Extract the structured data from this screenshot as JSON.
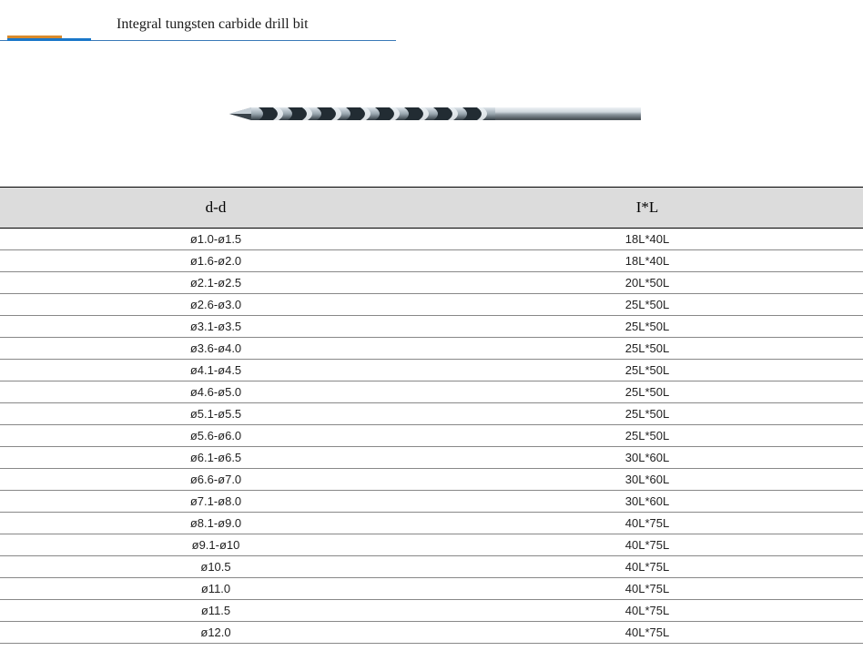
{
  "title": "Integral tungsten carbide drill bit",
  "accent": {
    "orange": "#d98a2b",
    "blue": "#1a77c9",
    "rule": "#3a7ab8"
  },
  "table": {
    "header_bg": "#dcdcdc",
    "columns": [
      "d-d",
      "I*L"
    ],
    "rows": [
      [
        "ø1.0-ø1.5",
        "18L*40L"
      ],
      [
        "ø1.6-ø2.0",
        "18L*40L"
      ],
      [
        "ø2.1-ø2.5",
        "20L*50L"
      ],
      [
        "ø2.6-ø3.0",
        "25L*50L"
      ],
      [
        "ø3.1-ø3.5",
        "25L*50L"
      ],
      [
        "ø3.6-ø4.0",
        "25L*50L"
      ],
      [
        "ø4.1-ø4.5",
        "25L*50L"
      ],
      [
        "ø4.6-ø5.0",
        "25L*50L"
      ],
      [
        "ø5.1-ø5.5",
        "25L*50L"
      ],
      [
        "ø5.6-ø6.0",
        "25L*50L"
      ],
      [
        "ø6.1-ø6.5",
        "30L*60L"
      ],
      [
        "ø6.6-ø7.0",
        "30L*60L"
      ],
      [
        "ø7.1-ø8.0",
        "30L*60L"
      ],
      [
        "ø8.1-ø9.0",
        "40L*75L"
      ],
      [
        "ø9.1-ø10",
        "40L*75L"
      ],
      [
        "ø10.5",
        "40L*75L"
      ],
      [
        "ø11.0",
        "40L*75L"
      ],
      [
        "ø11.5",
        "40L*75L"
      ],
      [
        "ø12.0",
        "40L*75L"
      ]
    ]
  },
  "drill_svg": {
    "shank": "#9aa3aa",
    "shank_hi": "#d6dde2",
    "flute_dark": "#2a333a",
    "flute_light": "#b9c3cb",
    "tip": "#6d7880"
  }
}
